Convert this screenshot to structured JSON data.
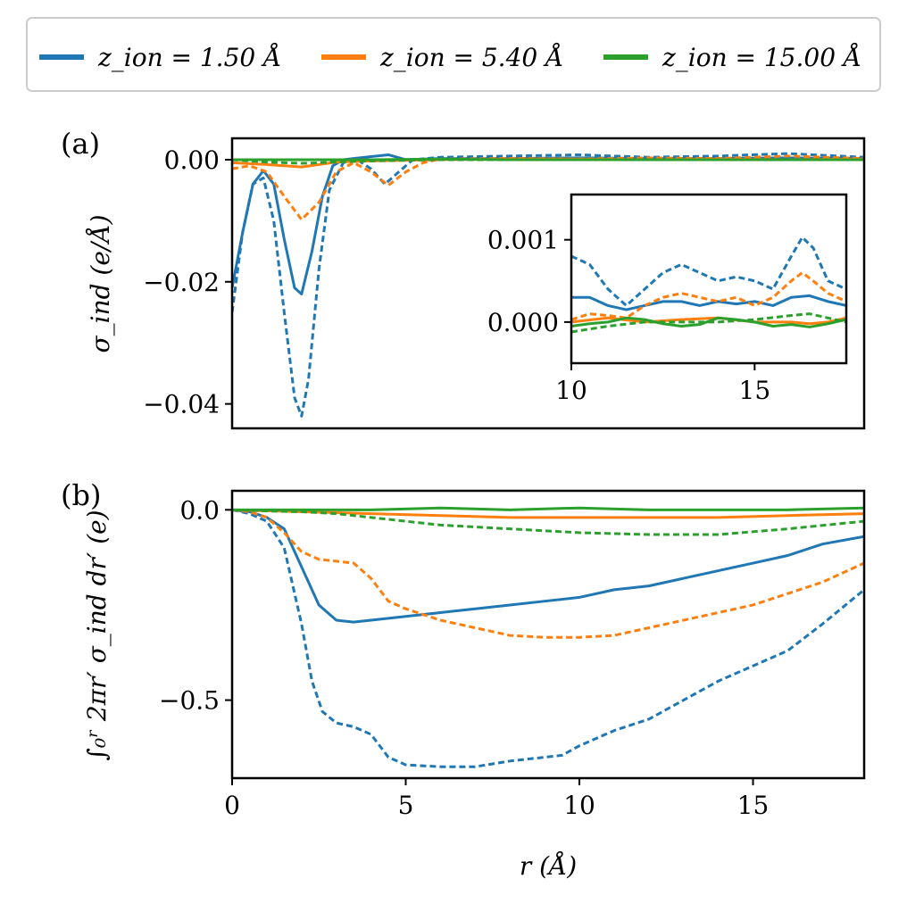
{
  "chart_data": [
    {
      "panel": "(a)",
      "type": "line",
      "ylabel": "σ_ind (e/Å)",
      "xlim": [
        0,
        18.2
      ],
      "ylim": [
        -0.044,
        0.0035
      ],
      "yticks": [
        0.0,
        -0.02,
        -0.04
      ],
      "ytick_labels": [
        "0.00",
        "−0.02",
        "−0.04"
      ],
      "series": [
        {
          "name": "z_ion = 1.50 Å (solid)",
          "color": "#1f77b4",
          "dash": false,
          "x": [
            0,
            0.3,
            0.6,
            0.9,
            1.2,
            1.5,
            1.8,
            2.0,
            2.3,
            2.6,
            2.9,
            3.2,
            3.5,
            4,
            4.5,
            5,
            6,
            8,
            10,
            12,
            14,
            16,
            18.2
          ],
          "y": [
            -0.021,
            -0.012,
            -0.004,
            -0.0018,
            -0.004,
            -0.013,
            -0.021,
            -0.022,
            -0.015,
            -0.006,
            -0.001,
            0.0,
            0.0002,
            0.0005,
            0.0008,
            0.0,
            0.0002,
            0.0002,
            0.0003,
            0.0002,
            0.0002,
            0.0003,
            0.0002
          ]
        },
        {
          "name": "z_ion = 1.50 Å (dashed)",
          "color": "#1f77b4",
          "dash": true,
          "x": [
            0,
            0.3,
            0.6,
            0.9,
            1.2,
            1.5,
            1.8,
            2.0,
            2.2,
            2.5,
            2.8,
            3.2,
            3.6,
            4.0,
            4.4,
            4.8,
            5.2,
            6,
            8,
            10,
            12,
            14,
            16,
            18.2
          ],
          "y": [
            -0.025,
            -0.012,
            -0.004,
            -0.003,
            -0.01,
            -0.025,
            -0.039,
            -0.042,
            -0.036,
            -0.018,
            -0.005,
            -0.0005,
            0.0,
            -0.0015,
            -0.004,
            -0.002,
            0.0,
            0.0004,
            0.0006,
            0.0008,
            0.0004,
            0.0006,
            0.001,
            0.0004
          ]
        },
        {
          "name": "z_ion = 5.40 Å (solid)",
          "color": "#ff7f0e",
          "dash": false,
          "x": [
            0,
            1,
            1.5,
            2,
            2.5,
            3,
            4,
            6,
            8,
            10,
            12,
            14,
            16,
            18.2
          ],
          "y": [
            -0.0005,
            -0.0008,
            -0.001,
            -0.0012,
            -0.0008,
            -0.0004,
            -0.0002,
            0.0,
            0.0001,
            0.0001,
            0.0,
            0.0001,
            0.0,
            0.0001
          ]
        },
        {
          "name": "z_ion = 5.40 Å (dashed)",
          "color": "#ff7f0e",
          "dash": true,
          "x": [
            0,
            0.5,
            1.0,
            1.5,
            2.0,
            2.5,
            3.0,
            3.5,
            4.0,
            4.5,
            5.0,
            5.5,
            6,
            8,
            10,
            12,
            14,
            16,
            18.2
          ],
          "y": [
            -0.0015,
            -0.001,
            -0.002,
            -0.006,
            -0.0098,
            -0.007,
            -0.002,
            -0.0005,
            -0.002,
            -0.0042,
            -0.002,
            -0.0005,
            0.0001,
            0.0002,
            0.0001,
            0.0003,
            0.0002,
            0.0006,
            0.0002
          ]
        },
        {
          "name": "z_ion = 15.00 Å (solid)",
          "color": "#2ca02c",
          "dash": false,
          "x": [
            0,
            2,
            4,
            6,
            8,
            10,
            12,
            14,
            16,
            18.2
          ],
          "y": [
            0.0,
            0.0,
            0.0,
            0.0001,
            0.0,
            0.0,
            0.0,
            0.0,
            0.0,
            0.0
          ]
        },
        {
          "name": "z_ion = 15.00 Å (dashed)",
          "color": "#2ca02c",
          "dash": true,
          "x": [
            0,
            1,
            2,
            3,
            4,
            5,
            6,
            8,
            10,
            12,
            14,
            16,
            18.2
          ],
          "y": [
            0.0,
            -0.0004,
            -0.0006,
            -0.0004,
            -0.0002,
            -0.0001,
            0.0,
            0.0,
            0.0,
            0.0,
            0.0,
            0.0,
            0.0
          ]
        }
      ],
      "inset": {
        "xlim": [
          10,
          17.5
        ],
        "ylim": [
          -0.0005,
          0.00155
        ],
        "xticks": [
          10,
          15
        ],
        "xtick_labels": [
          "10",
          "15"
        ],
        "yticks": [
          0.0,
          0.001
        ],
        "ytick_labels": [
          "0.000",
          "0.001"
        ],
        "series": [
          {
            "color": "#1f77b4",
            "dash": false,
            "x": [
              10,
              10.5,
              11,
              11.5,
              12,
              12.5,
              13,
              13.5,
              14,
              14.5,
              15,
              15.5,
              16,
              16.5,
              17,
              17.5
            ],
            "y": [
              0.0003,
              0.0003,
              0.0002,
              0.00015,
              0.0002,
              0.00025,
              0.00025,
              0.0002,
              0.00025,
              0.00022,
              0.00025,
              0.0002,
              0.0003,
              0.00032,
              0.00025,
              0.0002
            ]
          },
          {
            "color": "#1f77b4",
            "dash": true,
            "x": [
              10,
              10.5,
              11,
              11.5,
              12,
              12.5,
              13,
              13.5,
              14,
              14.5,
              15,
              15.5,
              16,
              16.3,
              16.6,
              17,
              17.5
            ],
            "y": [
              0.0008,
              0.0007,
              0.0004,
              0.0002,
              0.0004,
              0.0006,
              0.0007,
              0.0006,
              0.0005,
              0.00055,
              0.0005,
              0.0004,
              0.0008,
              0.00103,
              0.0009,
              0.0005,
              0.0004
            ]
          },
          {
            "color": "#ff7f0e",
            "dash": false,
            "x": [
              10,
              11,
              12,
              13,
              14,
              15,
              16,
              16.5,
              17,
              17.5
            ],
            "y": [
              0.0,
              5e-05,
              0.0,
              3e-05,
              5e-05,
              0.0,
              0.0,
              -2e-05,
              0.0,
              5e-05
            ]
          },
          {
            "color": "#ff7f0e",
            "dash": true,
            "x": [
              10,
              10.5,
              11,
              11.5,
              12,
              12.5,
              13,
              13.5,
              14,
              14.5,
              15,
              15.5,
              16,
              16.3,
              16.6,
              17,
              17.5
            ],
            "y": [
              3e-05,
              0.0001,
              8e-05,
              5e-05,
              0.0002,
              0.0003,
              0.00035,
              0.0003,
              0.00025,
              0.0003,
              0.0002,
              0.0003,
              0.0005,
              0.0006,
              0.0005,
              0.00035,
              0.00025
            ]
          },
          {
            "color": "#2ca02c",
            "dash": false,
            "x": [
              10,
              10.5,
              11,
              11.5,
              12,
              12.5,
              13,
              13.5,
              14,
              14.5,
              15,
              15.5,
              16,
              16.5,
              17,
              17.5
            ],
            "y": [
              -5e-05,
              -2e-05,
              0.0,
              5e-05,
              3e-05,
              -2e-05,
              -5e-05,
              -3e-05,
              5e-05,
              3e-05,
              0.0,
              -5e-05,
              -3e-05,
              -6e-05,
              -2e-05,
              3e-05
            ]
          },
          {
            "color": "#2ca02c",
            "dash": true,
            "x": [
              10,
              11,
              12,
              13,
              14,
              15,
              16,
              16.5,
              17,
              17.5
            ],
            "y": [
              -0.00012,
              -5e-05,
              0.0,
              0.0,
              0.0,
              3e-05,
              8e-05,
              0.0001,
              5e-05,
              0.0
            ]
          }
        ]
      }
    },
    {
      "panel": "(b)",
      "type": "line",
      "ylabel": "∫₀ʳ 2πr′ σ_ind dr′ (e)",
      "xlabel": "r (Å)",
      "xlim": [
        0,
        18.2
      ],
      "ylim": [
        -0.705,
        0.05
      ],
      "xticks": [
        0,
        5,
        10,
        15
      ],
      "xtick_labels": [
        "0",
        "5",
        "10",
        "15"
      ],
      "yticks": [
        0.0,
        -0.5
      ],
      "ytick_labels": [
        "0.0",
        "−0.5"
      ],
      "series": [
        {
          "name": "z_ion = 1.50 Å (solid)",
          "color": "#1f77b4",
          "dash": false,
          "x": [
            0,
            0.5,
            1.0,
            1.5,
            2.0,
            2.5,
            3.0,
            3.5,
            4,
            5,
            6,
            7,
            8,
            9,
            10,
            11,
            12,
            13,
            14,
            15,
            16,
            17,
            18.2
          ],
          "y": [
            0.0,
            -0.005,
            -0.02,
            -0.05,
            -0.15,
            -0.25,
            -0.29,
            -0.295,
            -0.29,
            -0.28,
            -0.27,
            -0.26,
            -0.25,
            -0.24,
            -0.23,
            -0.21,
            -0.2,
            -0.18,
            -0.16,
            -0.14,
            -0.12,
            -0.09,
            -0.07
          ]
        },
        {
          "name": "z_ion = 1.50 Å (dashed)",
          "color": "#1f77b4",
          "dash": true,
          "x": [
            0,
            0.5,
            1.0,
            1.5,
            2.0,
            2.3,
            2.6,
            3.0,
            3.5,
            4.0,
            4.5,
            5.0,
            6,
            7,
            8,
            9,
            9.5,
            10,
            11,
            12,
            13,
            14,
            15,
            16,
            17,
            18.2
          ],
          "y": [
            0.0,
            -0.01,
            -0.03,
            -0.1,
            -0.3,
            -0.45,
            -0.53,
            -0.56,
            -0.57,
            -0.59,
            -0.65,
            -0.67,
            -0.675,
            -0.675,
            -0.66,
            -0.65,
            -0.645,
            -0.62,
            -0.58,
            -0.55,
            -0.5,
            -0.45,
            -0.41,
            -0.37,
            -0.3,
            -0.21
          ]
        },
        {
          "name": "z_ion = 5.40 Å (solid)",
          "color": "#ff7f0e",
          "dash": false,
          "x": [
            0,
            2,
            4,
            6,
            8,
            10,
            12,
            14,
            16,
            18.2
          ],
          "y": [
            0.0,
            -0.005,
            -0.01,
            -0.015,
            -0.02,
            -0.02,
            -0.02,
            -0.02,
            -0.015,
            -0.01
          ]
        },
        {
          "name": "z_ion = 5.40 Å (dashed)",
          "color": "#ff7f0e",
          "dash": true,
          "x": [
            0,
            0.5,
            1.0,
            1.5,
            2.0,
            2.5,
            3.0,
            3.5,
            4.0,
            4.5,
            5.0,
            6,
            7,
            8,
            9,
            10,
            11,
            12,
            13,
            14,
            15,
            16,
            17,
            18.2
          ],
          "y": [
            0.0,
            -0.005,
            -0.02,
            -0.06,
            -0.11,
            -0.13,
            -0.135,
            -0.14,
            -0.18,
            -0.24,
            -0.26,
            -0.29,
            -0.31,
            -0.33,
            -0.335,
            -0.335,
            -0.33,
            -0.31,
            -0.29,
            -0.27,
            -0.25,
            -0.22,
            -0.19,
            -0.14
          ]
        },
        {
          "name": "z_ion = 15.00 Å (solid)",
          "color": "#2ca02c",
          "dash": false,
          "x": [
            0,
            2,
            4,
            6,
            8,
            10,
            12,
            14,
            16,
            18.2
          ],
          "y": [
            0.0,
            0.0,
            0.0,
            0.005,
            0.0,
            0.005,
            0.0,
            0.0,
            0.0,
            0.005
          ]
        },
        {
          "name": "z_ion = 15.00 Å (dashed)",
          "color": "#2ca02c",
          "dash": true,
          "x": [
            0,
            1,
            2,
            3,
            4,
            5,
            6,
            7,
            8,
            9,
            10,
            12,
            14,
            16,
            18.2
          ],
          "y": [
            0.0,
            -0.003,
            -0.005,
            -0.01,
            -0.02,
            -0.03,
            -0.04,
            -0.045,
            -0.05,
            -0.055,
            -0.06,
            -0.065,
            -0.065,
            -0.05,
            -0.03
          ]
        }
      ]
    }
  ],
  "legend": {
    "location": "top, outside",
    "entries": [
      {
        "label": "z_ion = 1.50 Å",
        "color": "#1f77b4"
      },
      {
        "label": "z_ion = 5.40 Å",
        "color": "#ff7f0e"
      },
      {
        "label": "z_ion = 15.00 Å",
        "color": "#2ca02c"
      }
    ]
  },
  "labels": {
    "panel_a": "(a)",
    "panel_b": "(b)",
    "ylabel_a": "σ_ind (e/Å)",
    "ylabel_b": "∫₀ʳ 2πr′ σ_ind dr′ (e)",
    "xlabel": "r (Å)"
  }
}
